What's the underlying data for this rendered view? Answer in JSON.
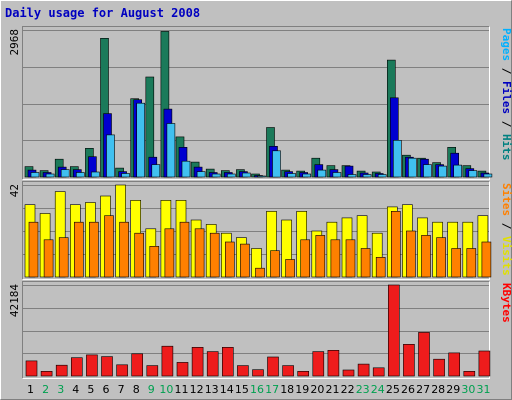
{
  "chart_data": {
    "type": "bar",
    "title": "Daily usage for August 2008",
    "categories": [
      "1",
      "2",
      "3",
      "4",
      "5",
      "6",
      "7",
      "8",
      "9",
      "10",
      "11",
      "12",
      "13",
      "14",
      "15",
      "16",
      "17",
      "18",
      "19",
      "20",
      "21",
      "22",
      "23",
      "24",
      "25",
      "26",
      "27",
      "28",
      "29",
      "30",
      "31"
    ],
    "weekend_days": [
      "2",
      "3",
      "9",
      "10",
      "16",
      "17",
      "23",
      "24",
      "30",
      "31"
    ],
    "panels": [
      {
        "id": "hits",
        "max_label": "2968",
        "ymax": 2968,
        "labels": [
          {
            "text": "Hits",
            "color": "#008080"
          },
          {
            "text": " / ",
            "color": "#000000"
          },
          {
            "text": "Files",
            "color": "#0000c0"
          },
          {
            "text": " / ",
            "color": "#000000"
          },
          {
            "text": "Pages",
            "color": "#00b0ff"
          }
        ],
        "series": [
          {
            "name": "Hits",
            "color": "#1b7a5a",
            "values": [
              210,
              130,
              360,
              210,
              580,
              2800,
              180,
              1580,
              2020,
              2940,
              810,
              300,
              160,
              130,
              150,
              60,
              1000,
              140,
              120,
              380,
              230,
              230,
              120,
              100,
              2360,
              440,
              380,
              290,
              600,
              230,
              120
            ]
          },
          {
            "name": "Files",
            "color": "#0000d0",
            "values": [
              140,
              90,
              200,
              150,
              410,
              1280,
              110,
              1560,
              400,
              1370,
              600,
              200,
              90,
              90,
              110,
              30,
              620,
              110,
              90,
              250,
              150,
              220,
              80,
              70,
              1600,
              400,
              360,
              250,
              480,
              170,
              80
            ]
          },
          {
            "name": "Pages",
            "color": "#40c0f0",
            "values": [
              90,
              60,
              150,
              90,
              100,
              850,
              70,
              1490,
              250,
              1080,
              320,
              110,
              60,
              60,
              80,
              20,
              530,
              70,
              60,
              140,
              90,
              50,
              50,
              50,
              740,
              380,
              250,
              220,
              240,
              130,
              60
            ]
          }
        ]
      },
      {
        "id": "visits",
        "max_label": "42",
        "ymax": 42,
        "labels": [
          {
            "text": "Visits",
            "color": "#e0e000"
          },
          {
            "text": " / ",
            "color": "#000000"
          },
          {
            "text": "Sites",
            "color": "#ff8000"
          }
        ],
        "series": [
          {
            "name": "Visits",
            "color": "#ffff00",
            "values": [
              33,
              29,
              39,
              33,
              34,
              37,
              42,
              35,
              22,
              35,
              35,
              26,
              24,
              20,
              18,
              13,
              30,
              26,
              30,
              21,
              25,
              27,
              28,
              20,
              32,
              33,
              27,
              25,
              25,
              25,
              28
            ]
          },
          {
            "name": "Sites",
            "color": "#ff8000",
            "values": [
              25,
              17,
              18,
              25,
              25,
              28,
              25,
              20,
              14,
              22,
              25,
              22,
              20,
              16,
              15,
              4,
              12,
              8,
              17,
              19,
              17,
              17,
              13,
              9,
              30,
              21,
              19,
              18,
              13,
              13,
              16
            ]
          }
        ]
      },
      {
        "id": "kbytes",
        "max_label": "42184",
        "ymax": 42184,
        "labels": [
          {
            "text": "KBytes",
            "color": "#ff0000"
          }
        ],
        "series": [
          {
            "name": "KBytes",
            "color": "#ee1c1c",
            "values": [
              7000,
              2200,
              5000,
              8500,
              9800,
              9000,
              5200,
              10300,
              4800,
              13800,
              6300,
              13300,
              11300,
              13300,
              4800,
              2900,
              8800,
              4800,
              2200,
              11300,
              11900,
              2800,
              5500,
              3800,
              42184,
              14700,
              20200,
              7800,
              10700,
              2200,
              11600
            ]
          }
        ]
      }
    ]
  }
}
